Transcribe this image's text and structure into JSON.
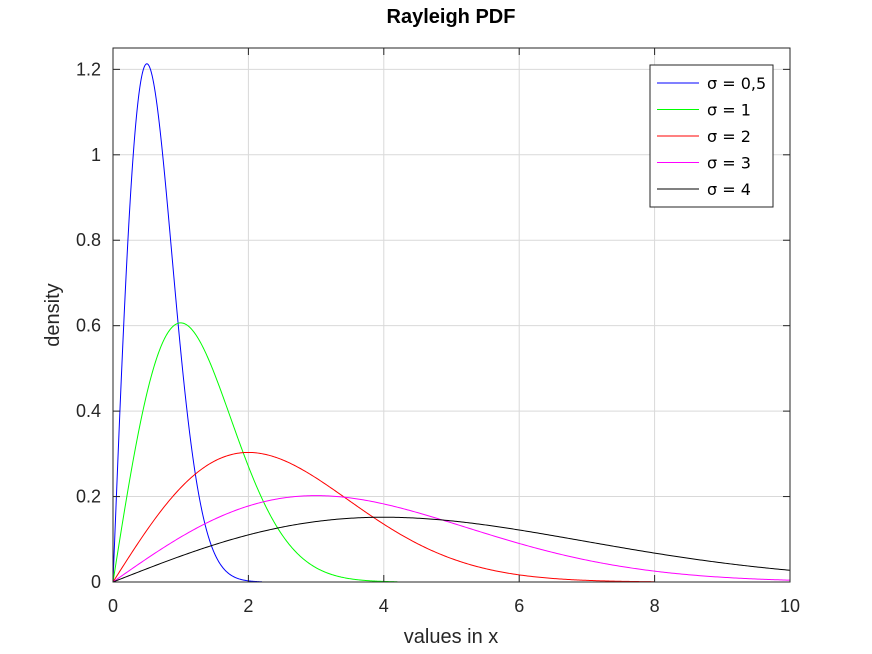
{
  "chart_data": {
    "type": "line",
    "title": "Rayleigh PDF",
    "xlabel": "values in x",
    "ylabel": "density",
    "xlim": [
      0,
      10
    ],
    "ylim": [
      0,
      1.25
    ],
    "xticks": [
      0,
      2,
      4,
      6,
      8,
      10
    ],
    "yticks": [
      0,
      0.2,
      0.4,
      0.6,
      0.8,
      1,
      1.2
    ],
    "xtick_labels": [
      "0",
      "2",
      "4",
      "6",
      "8",
      "10"
    ],
    "ytick_labels": [
      "0",
      "0.2",
      "0.4",
      "0.6",
      "0.8",
      "1",
      "1.2"
    ],
    "grid": true,
    "legend_position": "top-right",
    "series": [
      {
        "name": "σ = 0,5",
        "sigma": 0.5,
        "x_max": 2.2,
        "color": "#0000ff",
        "x": [
          0,
          0.25,
          0.5,
          0.75,
          1,
          1.25,
          1.5,
          1.75,
          2,
          2.2
        ],
        "y": [
          0,
          0.88,
          1.21,
          0.97,
          0.54,
          0.22,
          0.07,
          0.02,
          0.003,
          0.001
        ]
      },
      {
        "name": "σ = 1",
        "sigma": 1,
        "x_max": 4.2,
        "color": "#00ff00",
        "x": [
          0,
          0.5,
          1,
          1.5,
          2,
          2.5,
          3,
          3.5,
          4,
          4.2
        ],
        "y": [
          0,
          0.44,
          0.61,
          0.49,
          0.27,
          0.11,
          0.03,
          0.008,
          0.001,
          0.001
        ]
      },
      {
        "name": "σ = 2",
        "sigma": 2,
        "x_max": 8,
        "color": "#ff0000",
        "x": [
          0,
          1,
          2,
          3,
          4,
          5,
          6,
          7,
          8
        ],
        "y": [
          0,
          0.22,
          0.3,
          0.24,
          0.14,
          0.055,
          0.017,
          0.004,
          0.001
        ]
      },
      {
        "name": "σ = 3",
        "sigma": 3,
        "x_max": 10,
        "color": "#ff00ff",
        "x": [
          0,
          1,
          2,
          3,
          4,
          5,
          6,
          7,
          8,
          9,
          10
        ],
        "y": [
          0,
          0.11,
          0.18,
          0.2,
          0.18,
          0.14,
          0.09,
          0.05,
          0.03,
          0.011,
          0.004
        ]
      },
      {
        "name": "σ = 4",
        "sigma": 4,
        "x_max": 10,
        "color": "#000000",
        "x": [
          0,
          1,
          2,
          3,
          4,
          5,
          6,
          7,
          8,
          9,
          10
        ],
        "y": [
          0,
          0.06,
          0.11,
          0.14,
          0.15,
          0.15,
          0.12,
          0.1,
          0.07,
          0.05,
          0.03
        ]
      }
    ]
  }
}
